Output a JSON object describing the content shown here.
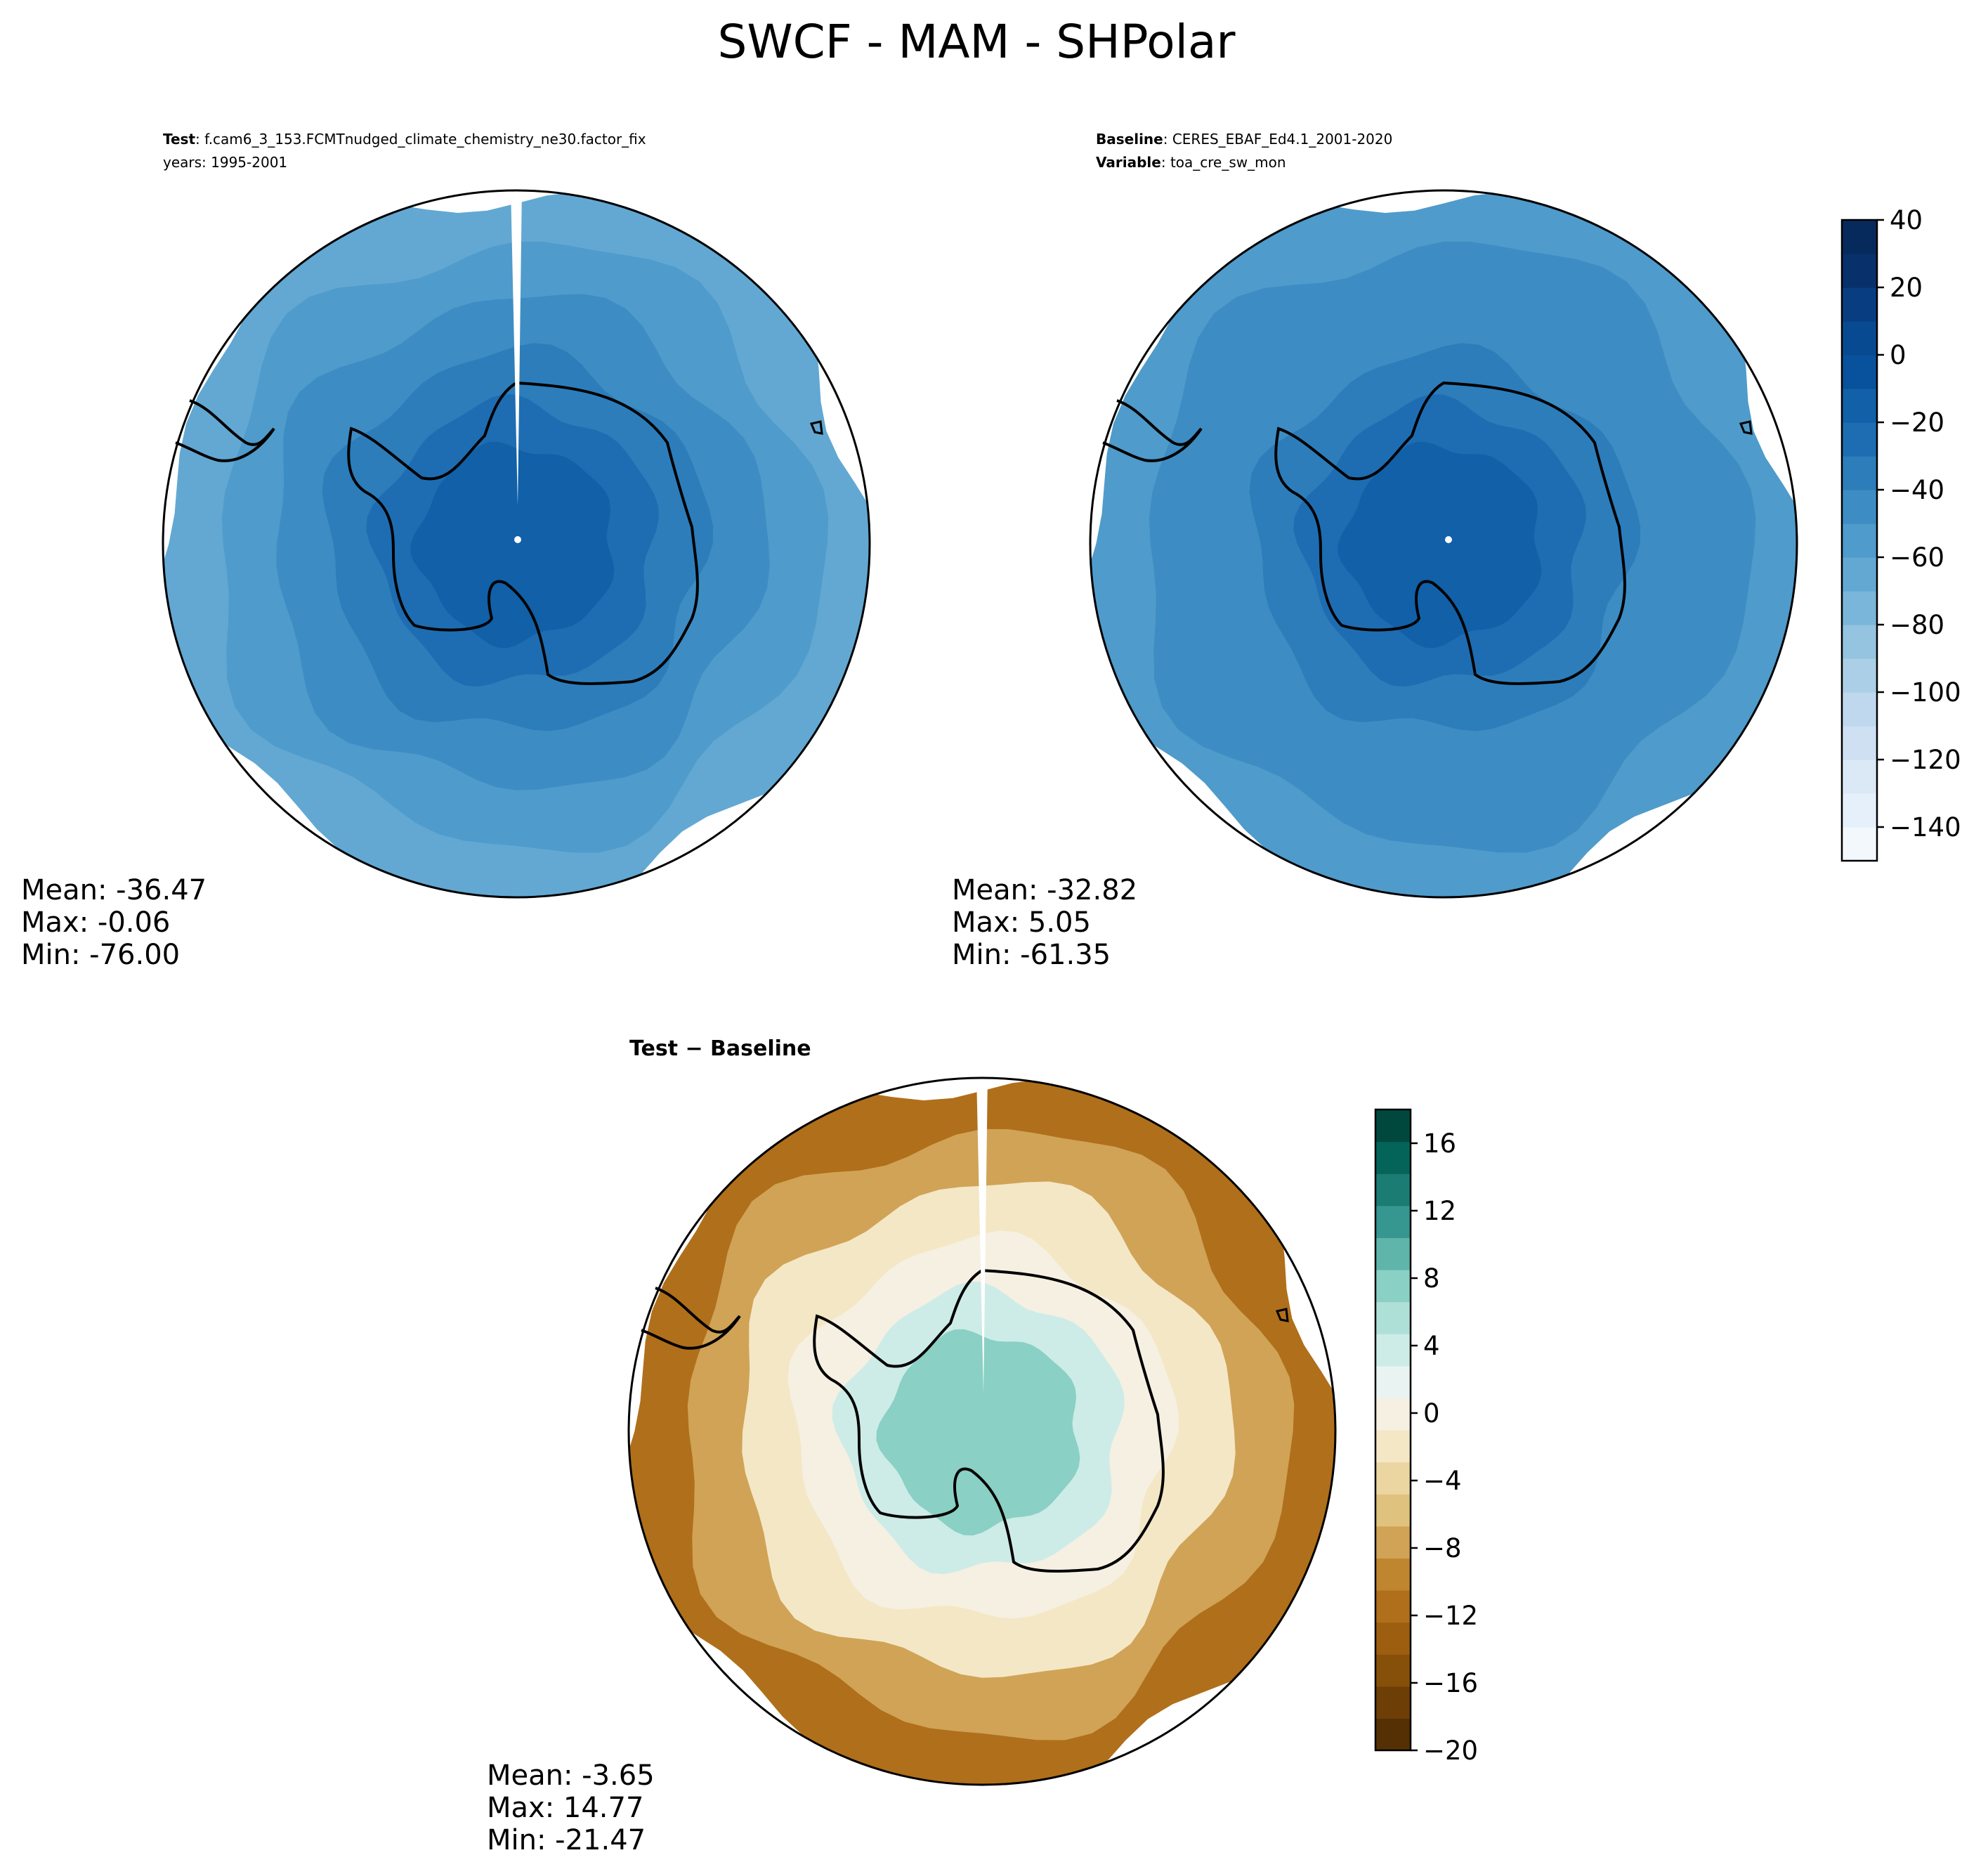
{
  "figure": {
    "title": "SWCF - MAM - SHPolar"
  },
  "panels": {
    "test": {
      "header_bold": "Test",
      "header_text": ": f.cam6_3_153.FCMTnudged_climate_chemistry_ne30.factor_fix",
      "header_line2": "years: 1995-2001",
      "stats": {
        "mean": "Mean: -36.47",
        "max": "Max: -0.06",
        "min": "Min: -76.00"
      }
    },
    "baseline": {
      "header_bold": "Baseline",
      "header_text": ": CERES_EBAF_Ed4.1_2001-2020",
      "header_bold2": "Variable",
      "header_text2": ": toa_cre_sw_mon",
      "stats": {
        "mean": "Mean: -32.82",
        "max": "Max:  5.05",
        "min": "Min: -61.35"
      }
    },
    "diff": {
      "header_bold": "Test − Baseline",
      "stats": {
        "mean": "Mean: -3.65",
        "max": "Max: 14.77",
        "min": "Min: -21.47"
      }
    }
  },
  "chart_data": [
    {
      "type": "heatmap",
      "panel": "test",
      "projection": "south polar stereographic",
      "field_levels": [
        -65,
        -55,
        -45,
        -35,
        -25,
        -20
      ],
      "mean": -36.47,
      "max": -0.06,
      "min": -76.0
    },
    {
      "type": "heatmap",
      "panel": "baseline",
      "projection": "south polar stereographic",
      "field_levels": [
        -55,
        -50,
        -45,
        -40,
        -30,
        -20
      ],
      "mean": -32.82,
      "max": 5.05,
      "min": -61.35
    },
    {
      "type": "heatmap",
      "panel": "diff",
      "projection": "south polar stereographic",
      "field_levels": [
        -12,
        -8,
        -2,
        0,
        3,
        8
      ],
      "mean": -3.65,
      "max": 14.77,
      "min": -21.47
    }
  ],
  "colorbars": {
    "abs": {
      "vmin": -150,
      "vmax": 40,
      "ticks": [
        40,
        20,
        0,
        -20,
        -40,
        -60,
        -80,
        -100,
        -120,
        -140
      ],
      "tick_labels": [
        "40",
        "20",
        "0",
        "−20",
        "−40",
        "−60",
        "−80",
        "−100",
        "−120",
        "−140"
      ],
      "colors": [
        "#f3f8fd",
        "#e6f0fa",
        "#dbe9f6",
        "#cee0f2",
        "#bfd8ed",
        "#abcfe6",
        "#94c4df",
        "#7ab6d9",
        "#62a8d3",
        "#4f9bcb",
        "#3d8dc4",
        "#2d7dbb",
        "#1e6db2",
        "#1160a8",
        "#08519c",
        "#084a91",
        "#083e81",
        "#08306b",
        "#072a5c"
      ]
    },
    "diff": {
      "vmin": -20,
      "vmax": 18,
      "ticks": [
        16,
        12,
        8,
        4,
        0,
        -4,
        -8,
        -12,
        -16,
        -20
      ],
      "tick_labels": [
        "16",
        "12",
        "8",
        "4",
        "0",
        "−4",
        "−8",
        "−12",
        "−16",
        "−20"
      ],
      "colors": [
        "#553005",
        "#6e3e07",
        "#87500a",
        "#9d5e10",
        "#b06f1a",
        "#c0862f",
        "#d0a356",
        "#dfc27e",
        "#ebd6a2",
        "#f4e7c6",
        "#f6f0e2",
        "#e9f4f2",
        "#cdece7",
        "#afe0d8",
        "#8ad0c4",
        "#5fb5aa",
        "#35978f",
        "#1b7c73",
        "#056459",
        "#00483d"
      ]
    }
  }
}
